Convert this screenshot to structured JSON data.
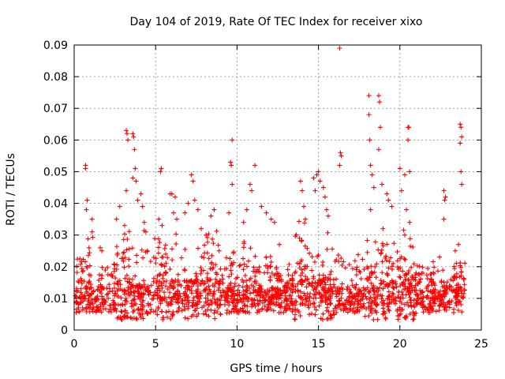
{
  "chart_data": {
    "type": "scatter",
    "title": "Day 104 of 2019, Rate Of TEC Index for receiver xixo",
    "xlabel": "GPS time / hours",
    "ylabel": "ROTI / TECUs",
    "xlim": [
      0,
      25
    ],
    "ylim": [
      0,
      0.09
    ],
    "x_ticks": [
      "0",
      "5",
      "10",
      "15",
      "20",
      "25"
    ],
    "y_ticks": [
      "0",
      "0.01",
      "0.02",
      "0.03",
      "0.04",
      "0.05",
      "0.06",
      "0.07",
      "0.08",
      "0.09"
    ],
    "grid": true,
    "marker": "+",
    "series": [
      {
        "name": "ROTI",
        "color": "#ff0000",
        "background_sample_note": "dense background points are drawn procedurally around this baseline",
        "baseline": 0.009,
        "points": [
          [
            0.7,
            0.052
          ],
          [
            0.7,
            0.051
          ],
          [
            0.75,
            0.038
          ],
          [
            0.8,
            0.041
          ],
          [
            1.1,
            0.035
          ],
          [
            1.1,
            0.031
          ],
          [
            1.6,
            0.026
          ],
          [
            1.7,
            0.025
          ],
          [
            2.6,
            0.035
          ],
          [
            2.8,
            0.039
          ],
          [
            3.2,
            0.063
          ],
          [
            3.25,
            0.062
          ],
          [
            3.3,
            0.06
          ],
          [
            3.2,
            0.044
          ],
          [
            3.1,
            0.033
          ],
          [
            3.6,
            0.062
          ],
          [
            3.65,
            0.061
          ],
          [
            3.7,
            0.057
          ],
          [
            3.75,
            0.051
          ],
          [
            3.6,
            0.048
          ],
          [
            3.8,
            0.047
          ],
          [
            3.9,
            0.041
          ],
          [
            4.1,
            0.043
          ],
          [
            4.2,
            0.039
          ],
          [
            4.3,
            0.034
          ],
          [
            4.4,
            0.031
          ],
          [
            4.5,
            0.025
          ],
          [
            5.3,
            0.05
          ],
          [
            5.35,
            0.051
          ],
          [
            5.2,
            0.035
          ],
          [
            5.4,
            0.033
          ],
          [
            5.9,
            0.043
          ],
          [
            6.0,
            0.043
          ],
          [
            6.2,
            0.042
          ],
          [
            6.1,
            0.037
          ],
          [
            6.3,
            0.035
          ],
          [
            6.8,
            0.037
          ],
          [
            7.0,
            0.04
          ],
          [
            7.2,
            0.049
          ],
          [
            7.3,
            0.047
          ],
          [
            7.4,
            0.041
          ],
          [
            7.6,
            0.038
          ],
          [
            7.8,
            0.032
          ],
          [
            8.1,
            0.03
          ],
          [
            8.4,
            0.036
          ],
          [
            8.6,
            0.038
          ],
          [
            8.9,
            0.025
          ],
          [
            9.7,
            0.06
          ],
          [
            9.6,
            0.053
          ],
          [
            9.65,
            0.052
          ],
          [
            9.7,
            0.046
          ],
          [
            9.5,
            0.037
          ],
          [
            10.4,
            0.034
          ],
          [
            10.6,
            0.038
          ],
          [
            10.8,
            0.046
          ],
          [
            10.9,
            0.044
          ],
          [
            11.1,
            0.052
          ],
          [
            11.5,
            0.039
          ],
          [
            11.8,
            0.037
          ],
          [
            12.1,
            0.035
          ],
          [
            12.3,
            0.034
          ],
          [
            12.6,
            0.027
          ],
          [
            13.9,
            0.047
          ],
          [
            14.0,
            0.044
          ],
          [
            14.1,
            0.039
          ],
          [
            14.2,
            0.035
          ],
          [
            14.7,
            0.048
          ],
          [
            14.8,
            0.044
          ],
          [
            14.9,
            0.049
          ],
          [
            15.0,
            0.05
          ],
          [
            15.1,
            0.047
          ],
          [
            15.3,
            0.045
          ],
          [
            15.4,
            0.042
          ],
          [
            15.5,
            0.038
          ],
          [
            15.6,
            0.036
          ],
          [
            16.3,
            0.089
          ],
          [
            16.35,
            0.056
          ],
          [
            16.4,
            0.055
          ],
          [
            16.3,
            0.052
          ],
          [
            18.1,
            0.074
          ],
          [
            18.1,
            0.068
          ],
          [
            18.15,
            0.06
          ],
          [
            18.2,
            0.052
          ],
          [
            18.3,
            0.049
          ],
          [
            18.4,
            0.045
          ],
          [
            18.2,
            0.038
          ],
          [
            18.7,
            0.074
          ],
          [
            18.75,
            0.072
          ],
          [
            18.8,
            0.064
          ],
          [
            18.7,
            0.057
          ],
          [
            18.9,
            0.046
          ],
          [
            19.2,
            0.043
          ],
          [
            19.3,
            0.041
          ],
          [
            19.5,
            0.039
          ],
          [
            20.0,
            0.051
          ],
          [
            20.1,
            0.044
          ],
          [
            20.3,
            0.049
          ],
          [
            20.5,
            0.064
          ],
          [
            20.55,
            0.064
          ],
          [
            20.5,
            0.06
          ],
          [
            20.6,
            0.05
          ],
          [
            20.4,
            0.038
          ],
          [
            20.6,
            0.034
          ],
          [
            20.3,
            0.03
          ],
          [
            22.7,
            0.044
          ],
          [
            22.8,
            0.042
          ],
          [
            22.75,
            0.041
          ],
          [
            22.7,
            0.035
          ],
          [
            23.7,
            0.065
          ],
          [
            23.75,
            0.064
          ],
          [
            23.7,
            0.059
          ],
          [
            23.8,
            0.061
          ],
          [
            23.75,
            0.05
          ],
          [
            23.8,
            0.046
          ],
          [
            23.6,
            0.027
          ],
          [
            23.4,
            0.025
          ]
        ]
      }
    ]
  }
}
